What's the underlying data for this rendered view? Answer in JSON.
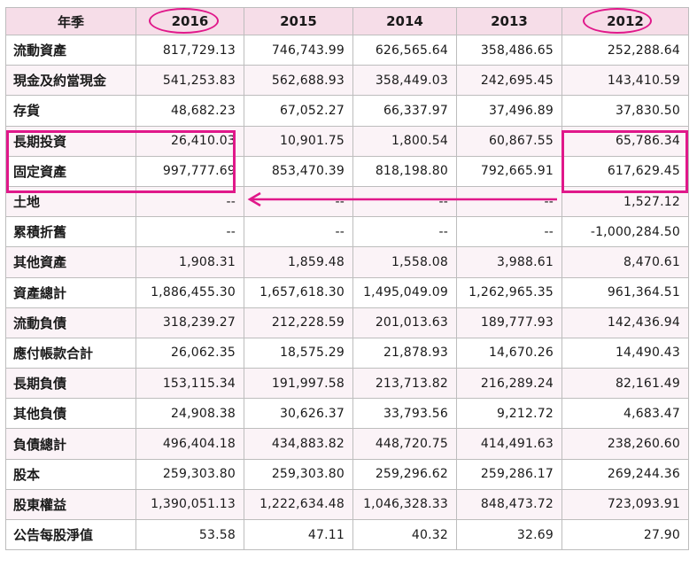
{
  "table": {
    "headers": [
      "年季",
      "2016",
      "2015",
      "2014",
      "2013",
      "2012"
    ],
    "rows": [
      {
        "label": "流動資產",
        "values": [
          "817,729.13",
          "746,743.99",
          "626,565.64",
          "358,486.65",
          "252,288.64"
        ]
      },
      {
        "label": "現金及約當現金",
        "values": [
          "541,253.83",
          "562,688.93",
          "358,449.03",
          "242,695.45",
          "143,410.59"
        ]
      },
      {
        "label": "存貨",
        "values": [
          "48,682.23",
          "67,052.27",
          "66,337.97",
          "37,496.89",
          "37,830.50"
        ]
      },
      {
        "label": "長期投資",
        "values": [
          "26,410.03",
          "10,901.75",
          "1,800.54",
          "60,867.55",
          "65,786.34"
        ]
      },
      {
        "label": "固定資產",
        "values": [
          "997,777.69",
          "853,470.39",
          "818,198.80",
          "792,665.91",
          "617,629.45"
        ]
      },
      {
        "label": "土地",
        "values": [
          "--",
          "--",
          "--",
          "--",
          "1,527.12"
        ]
      },
      {
        "label": "累積折舊",
        "values": [
          "--",
          "--",
          "--",
          "--",
          "-1,000,284.50"
        ]
      },
      {
        "label": "其他資產",
        "values": [
          "1,908.31",
          "1,859.48",
          "1,558.08",
          "3,988.61",
          "8,470.61"
        ]
      },
      {
        "label": "資產總計",
        "values": [
          "1,886,455.30",
          "1,657,618.30",
          "1,495,049.09",
          "1,262,965.35",
          "961,364.51"
        ]
      },
      {
        "label": "流動負債",
        "values": [
          "318,239.27",
          "212,228.59",
          "201,013.63",
          "189,777.93",
          "142,436.94"
        ]
      },
      {
        "label": "應付帳款合計",
        "values": [
          "26,062.35",
          "18,575.29",
          "21,878.93",
          "14,670.26",
          "14,490.43"
        ]
      },
      {
        "label": "長期負債",
        "values": [
          "153,115.34",
          "191,997.58",
          "213,713.82",
          "216,289.24",
          "82,161.49"
        ]
      },
      {
        "label": "其他負債",
        "values": [
          "24,908.38",
          "30,626.37",
          "33,793.56",
          "9,212.72",
          "4,683.47"
        ]
      },
      {
        "label": "負債總計",
        "values": [
          "496,404.18",
          "434,883.82",
          "448,720.75",
          "414,491.63",
          "238,260.60"
        ]
      },
      {
        "label": "股本",
        "values": [
          "259,303.80",
          "259,303.80",
          "259,296.62",
          "259,286.17",
          "269,244.36"
        ]
      },
      {
        "label": "股東權益",
        "values": [
          "1,390,051.13",
          "1,222,634.48",
          "1,046,328.33",
          "848,473.72",
          "723,093.91"
        ]
      },
      {
        "label": "公告每股淨值",
        "values": [
          "53.58",
          "47.11",
          "40.32",
          "32.69",
          "27.90"
        ]
      }
    ]
  },
  "annotations": {
    "accent_color": "#e0188a",
    "circled_headers": [
      "2016",
      "2012"
    ],
    "boxed_rows": [
      "長期投資",
      "固定資產"
    ],
    "arrow_direction": "left"
  }
}
